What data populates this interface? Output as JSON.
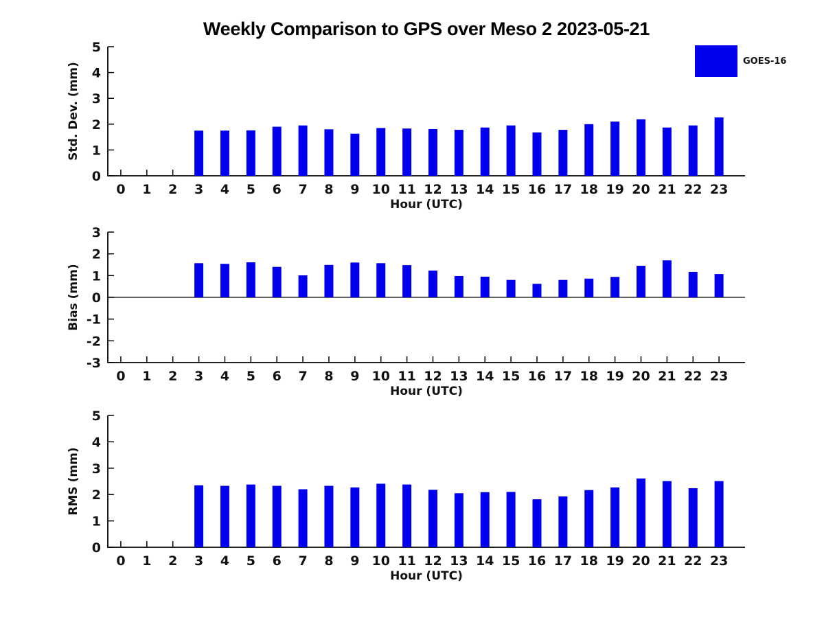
{
  "figure": {
    "title": "Weekly Comparison to GPS over Meso 2 2023-05-21",
    "legend": {
      "label": "GOES-16",
      "swatch_color": "#0000ee",
      "position": "upper-right-outside"
    }
  },
  "colors": {
    "bar": "#0000ee",
    "axis": "#000000",
    "text": "#111111",
    "background": "#ffffff"
  },
  "chart_data": [
    {
      "type": "bar",
      "name": "std-dev-subplot",
      "series_name": "GOES-16",
      "xlabel": "Hour (UTC)",
      "ylabel": "Std. Dev. (mm)",
      "categories": [
        0,
        1,
        2,
        3,
        4,
        5,
        6,
        7,
        8,
        9,
        10,
        11,
        12,
        13,
        14,
        15,
        16,
        17,
        18,
        19,
        20,
        21,
        22,
        23
      ],
      "values": [
        null,
        null,
        null,
        1.75,
        1.75,
        1.76,
        1.9,
        1.95,
        1.8,
        1.63,
        1.85,
        1.83,
        1.81,
        1.78,
        1.87,
        1.95,
        1.68,
        1.78,
        2.0,
        2.1,
        2.19,
        1.87,
        1.95,
        2.26
      ],
      "ylim": [
        0,
        5
      ],
      "yticks": [
        0,
        1,
        2,
        3,
        4,
        5
      ],
      "xlim": [
        -0.5,
        24
      ],
      "grid": false,
      "zero_line": false
    },
    {
      "type": "bar",
      "name": "bias-subplot",
      "series_name": "GOES-16",
      "xlabel": "Hour (UTC)",
      "ylabel": "Bias (mm)",
      "categories": [
        0,
        1,
        2,
        3,
        4,
        5,
        6,
        7,
        8,
        9,
        10,
        11,
        12,
        13,
        14,
        15,
        16,
        17,
        18,
        19,
        20,
        21,
        22,
        23
      ],
      "values": [
        null,
        null,
        null,
        1.57,
        1.54,
        1.61,
        1.4,
        1.01,
        1.49,
        1.6,
        1.57,
        1.48,
        1.23,
        0.98,
        0.95,
        0.8,
        0.62,
        0.8,
        0.86,
        0.94,
        1.45,
        1.7,
        1.17,
        1.07
      ],
      "ylim": [
        -3,
        3
      ],
      "yticks": [
        -3,
        -2,
        -1,
        0,
        1,
        2,
        3
      ],
      "xlim": [
        -0.5,
        24
      ],
      "grid": false,
      "zero_line": true
    },
    {
      "type": "bar",
      "name": "rms-subplot",
      "series_name": "GOES-16",
      "xlabel": "Hour (UTC)",
      "ylabel": "RMS (mm)",
      "categories": [
        0,
        1,
        2,
        3,
        4,
        5,
        6,
        7,
        8,
        9,
        10,
        11,
        12,
        13,
        14,
        15,
        16,
        17,
        18,
        19,
        20,
        21,
        22,
        23
      ],
      "values": [
        null,
        null,
        null,
        2.35,
        2.33,
        2.38,
        2.33,
        2.2,
        2.33,
        2.27,
        2.41,
        2.38,
        2.18,
        2.05,
        2.09,
        2.1,
        1.82,
        1.93,
        2.17,
        2.27,
        2.61,
        2.51,
        2.24,
        2.51
      ],
      "ylim": [
        0,
        5
      ],
      "yticks": [
        0,
        1,
        2,
        3,
        4,
        5
      ],
      "xlim": [
        -0.5,
        24
      ],
      "grid": false,
      "zero_line": false
    }
  ]
}
